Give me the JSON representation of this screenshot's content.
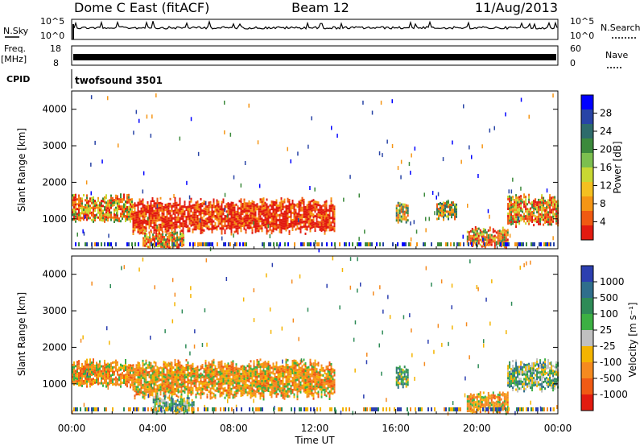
{
  "header": {
    "title": "Dome C East (fitACF)",
    "beam": "Beam 12",
    "date": "11/Aug/2013"
  },
  "top_panels": {
    "nsky_label": "N.Sky",
    "nsky_ticks": [
      "10^5",
      "10^0"
    ],
    "nsearch_label": "N.Search",
    "nsearch_ticks": [
      "10^5",
      "10^0"
    ],
    "freq_label_line1": "Freq.",
    "freq_label_line2": "[MHz]",
    "freq_ticks": [
      "18",
      "8"
    ],
    "nave_label": "Nave",
    "nave_ticks": [
      "60",
      "0"
    ],
    "cpid_label": "CPID",
    "cpid_text": "twofsound 3501"
  },
  "chart_data": [
    {
      "type": "heatmap",
      "name": "power-panel",
      "ylabel": "Slant Range [km]",
      "ylim": [
        180,
        4500
      ],
      "y_ticks": [
        "1000",
        "2000",
        "3000",
        "4000"
      ],
      "x_ticks": [
        "00:00",
        "04:00",
        "08:00",
        "12:00",
        "16:00",
        "20:00",
        "00:00"
      ],
      "xlim_hours": [
        0,
        24
      ],
      "colorbar": {
        "label": "Power [dB]",
        "ticks": [
          "4",
          "8",
          "12",
          "16",
          "20",
          "24",
          "28"
        ],
        "colors": [
          "#0000ff",
          "#2844a6",
          "#2e6b6b",
          "#3c8a3c",
          "#7cbf4f",
          "#c8d832",
          "#f4c020",
          "#f59514",
          "#f05a12",
          "#e21b10"
        ]
      },
      "echo_regions": [
        {
          "t_start": 0.0,
          "t_end": 3.0,
          "r_low": 900,
          "r_high": 1700,
          "level": "high"
        },
        {
          "t_start": 3.0,
          "t_end": 13.0,
          "r_low": 600,
          "r_high": 1600,
          "level": "very_high"
        },
        {
          "t_start": 3.5,
          "t_end": 5.5,
          "r_low": 200,
          "r_high": 700,
          "level": "high"
        },
        {
          "t_start": 16.0,
          "t_end": 16.6,
          "r_low": 900,
          "r_high": 1500,
          "level": "medium"
        },
        {
          "t_start": 18.0,
          "t_end": 19.0,
          "r_low": 1000,
          "r_high": 1500,
          "level": "medium"
        },
        {
          "t_start": 19.5,
          "t_end": 21.5,
          "r_low": 200,
          "r_high": 800,
          "level": "high"
        },
        {
          "t_start": 21.5,
          "t_end": 24.0,
          "r_low": 800,
          "r_high": 1700,
          "level": "high"
        }
      ]
    },
    {
      "type": "heatmap",
      "name": "velocity-panel",
      "ylabel": "Slant Range [km]",
      "xlabel": "Time UT",
      "ylim": [
        180,
        4500
      ],
      "y_ticks": [
        "1000",
        "2000",
        "3000",
        "4000"
      ],
      "x_ticks": [
        "00:00",
        "04:00",
        "08:00",
        "12:00",
        "16:00",
        "20:00",
        "00:00"
      ],
      "xlim_hours": [
        0,
        24
      ],
      "colorbar": {
        "label": "Velocity [m s⁻¹]",
        "ticks": [
          "1000",
          "500",
          "100",
          "25",
          "-25",
          "-100",
          "-500",
          "-1000"
        ],
        "colors": [
          "#2c3fb0",
          "#2f6e8c",
          "#2e8b57",
          "#3cb043",
          "#c0c0c0",
          "#f4b400",
          "#f58a1f",
          "#f05a14",
          "#e21b10"
        ]
      },
      "echo_regions": [
        {
          "t_start": 0.0,
          "t_end": 3.0,
          "r_low": 900,
          "r_high": 1700,
          "level": "-100"
        },
        {
          "t_start": 3.0,
          "t_end": 13.0,
          "r_low": 600,
          "r_high": 1700,
          "level": "-100"
        },
        {
          "t_start": 4.0,
          "t_end": 6.0,
          "r_low": 200,
          "r_high": 700,
          "level": "100"
        },
        {
          "t_start": 16.0,
          "t_end": 16.6,
          "r_low": 900,
          "r_high": 1500,
          "level": "500"
        },
        {
          "t_start": 19.5,
          "t_end": 21.5,
          "r_low": 200,
          "r_high": 800,
          "level": "-100"
        },
        {
          "t_start": 21.5,
          "t_end": 24.0,
          "r_low": 800,
          "r_high": 1700,
          "level": "100"
        }
      ]
    }
  ]
}
